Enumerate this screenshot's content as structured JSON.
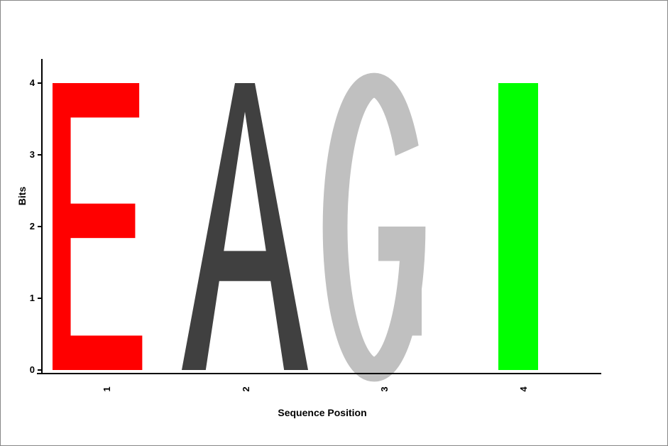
{
  "chart_data": {
    "type": "sequence-logo",
    "title": "",
    "xlabel": "Sequence Position",
    "ylabel": "Bits",
    "ylim": [
      0,
      4
    ],
    "yticks": [
      "0",
      "1",
      "2",
      "3",
      "4"
    ],
    "positions": [
      {
        "label": "1",
        "letter": "E",
        "bits": 4.0,
        "color": "#ff0000"
      },
      {
        "label": "2",
        "letter": "A",
        "bits": 4.0,
        "color": "#404040"
      },
      {
        "label": "3",
        "letter": "G",
        "bits": 4.0,
        "color": "#c0c0c0"
      },
      {
        "label": "4",
        "letter": "I",
        "bits": 4.0,
        "color": "#00ff00"
      }
    ]
  }
}
